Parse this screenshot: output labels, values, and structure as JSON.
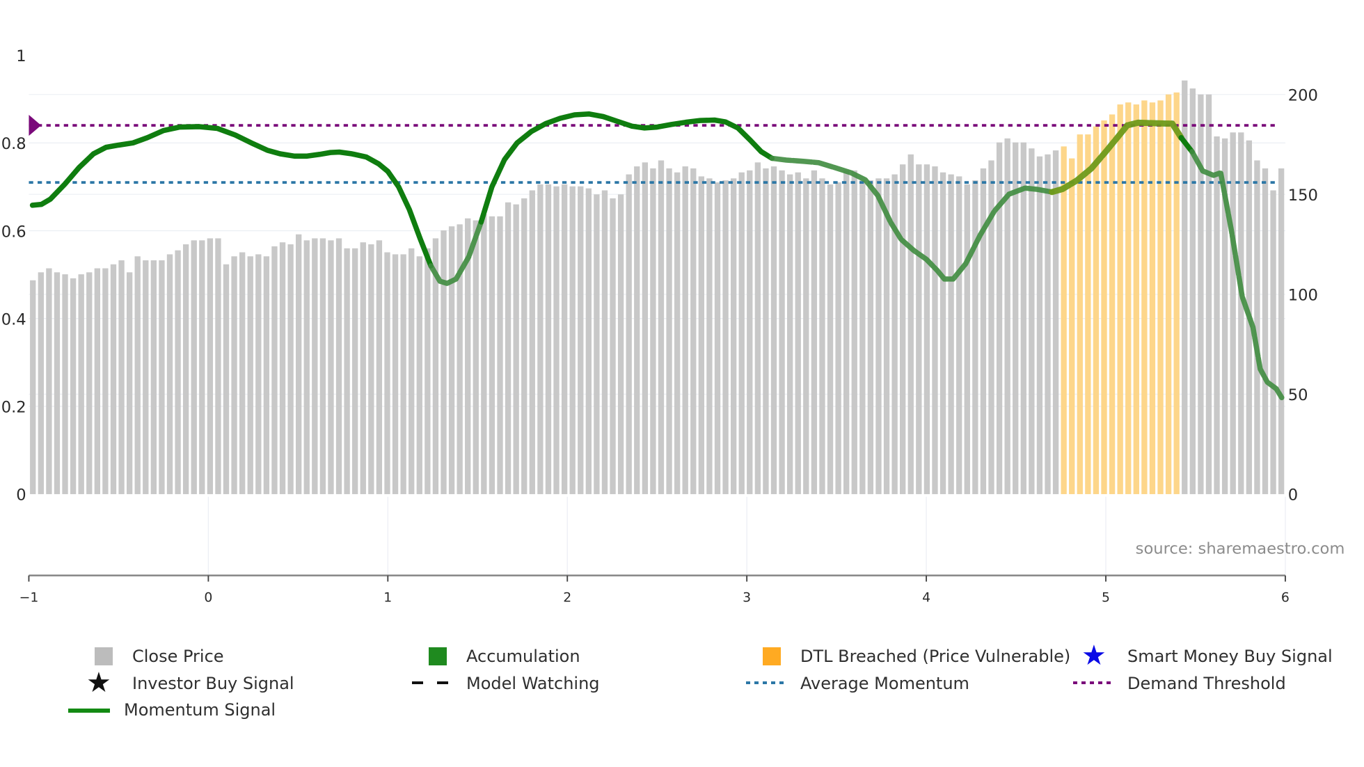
{
  "chart_data": {
    "type": "bar+line",
    "title": "",
    "source": "source: sharemaestro.com",
    "x_axis": {
      "ticks": [
        "−1",
        "0",
        "1",
        "2",
        "3",
        "4",
        "5",
        "6"
      ],
      "range": [
        -1,
        6
      ]
    },
    "y_left": {
      "ticks": [
        "0",
        "0.2",
        "0.4",
        "0.6",
        "0.8",
        "1"
      ],
      "range": [
        0,
        1
      ]
    },
    "y_right": {
      "ticks": [
        "0",
        "50",
        "100",
        "150",
        "200"
      ],
      "range": [
        0,
        220
      ]
    },
    "series": [
      {
        "name": "Close Price",
        "type": "bar",
        "axis": "right",
        "color": "#c8c8c8",
        "highlight_color": "#fdd68a",
        "highlight_range": [
          128,
          142
        ],
        "values": [
          107,
          111,
          113,
          111,
          110,
          108,
          110,
          111,
          113,
          113,
          115,
          117,
          111,
          119,
          117,
          117,
          117,
          120,
          122,
          125,
          127,
          127,
          128,
          128,
          115,
          119,
          121,
          119,
          120,
          119,
          124,
          126,
          125,
          130,
          127,
          128,
          128,
          127,
          128,
          123,
          123,
          126,
          125,
          127,
          121,
          120,
          120,
          123,
          119,
          123,
          128,
          132,
          134,
          135,
          138,
          137,
          140,
          139,
          139,
          146,
          145,
          148,
          152,
          155,
          155,
          154,
          155,
          154,
          154,
          153,
          150,
          152,
          148,
          150,
          160,
          164,
          166,
          163,
          167,
          163,
          161,
          164,
          163,
          159,
          158,
          156,
          157,
          158,
          161,
          162,
          166,
          163,
          164,
          162,
          160,
          161,
          158,
          162,
          158,
          155,
          156,
          162,
          162,
          157,
          157,
          158,
          158,
          160,
          165,
          170,
          165,
          165,
          164,
          161,
          160,
          159,
          155,
          157,
          163,
          167,
          176,
          178,
          176,
          176,
          173,
          169,
          170,
          172,
          174,
          168,
          180,
          180,
          184,
          187,
          190,
          195,
          196,
          195,
          197,
          196,
          197,
          200,
          201,
          207,
          203,
          200,
          200,
          179,
          178,
          181,
          181,
          177,
          167,
          163,
          152,
          163
        ]
      },
      {
        "name": "Momentum Signal",
        "type": "line",
        "axis": "left",
        "color": "#0f7d0f",
        "points": [
          [
            -0.98,
            0.658
          ],
          [
            -0.93,
            0.66
          ],
          [
            -0.88,
            0.672
          ],
          [
            -0.8,
            0.706
          ],
          [
            -0.72,
            0.744
          ],
          [
            -0.64,
            0.775
          ],
          [
            -0.57,
            0.79
          ],
          [
            -0.5,
            0.795
          ],
          [
            -0.42,
            0.8
          ],
          [
            -0.34,
            0.812
          ],
          [
            -0.25,
            0.828
          ],
          [
            -0.16,
            0.836
          ],
          [
            -0.05,
            0.837
          ],
          [
            0.05,
            0.833
          ],
          [
            0.15,
            0.818
          ],
          [
            0.25,
            0.798
          ],
          [
            0.33,
            0.783
          ],
          [
            0.4,
            0.775
          ],
          [
            0.48,
            0.77
          ],
          [
            0.55,
            0.77
          ],
          [
            0.62,
            0.774
          ],
          [
            0.68,
            0.778
          ],
          [
            0.73,
            0.779
          ],
          [
            0.8,
            0.775
          ],
          [
            0.88,
            0.768
          ],
          [
            0.95,
            0.752
          ],
          [
            1.0,
            0.735
          ],
          [
            1.06,
            0.7
          ],
          [
            1.12,
            0.648
          ],
          [
            1.18,
            0.582
          ],
          [
            1.24,
            0.52
          ],
          [
            1.29,
            0.485
          ],
          [
            1.33,
            0.48
          ],
          [
            1.38,
            0.49
          ],
          [
            1.45,
            0.54
          ],
          [
            1.52,
            0.62
          ],
          [
            1.58,
            0.7
          ],
          [
            1.65,
            0.762
          ],
          [
            1.72,
            0.8
          ],
          [
            1.8,
            0.826
          ],
          [
            1.88,
            0.844
          ],
          [
            1.96,
            0.856
          ],
          [
            2.04,
            0.864
          ],
          [
            2.12,
            0.866
          ],
          [
            2.2,
            0.86
          ],
          [
            2.28,
            0.849
          ],
          [
            2.36,
            0.838
          ],
          [
            2.43,
            0.834
          ],
          [
            2.5,
            0.836
          ],
          [
            2.58,
            0.842
          ],
          [
            2.66,
            0.847
          ],
          [
            2.74,
            0.851
          ],
          [
            2.82,
            0.852
          ],
          [
            2.88,
            0.848
          ],
          [
            2.95,
            0.834
          ],
          [
            3.02,
            0.806
          ],
          [
            3.08,
            0.78
          ],
          [
            3.14,
            0.765
          ],
          [
            3.22,
            0.761
          ],
          [
            3.32,
            0.758
          ],
          [
            3.4,
            0.755
          ],
          [
            3.48,
            0.745
          ],
          [
            3.58,
            0.732
          ],
          [
            3.66,
            0.716
          ],
          [
            3.73,
            0.68
          ],
          [
            3.8,
            0.62
          ],
          [
            3.86,
            0.58
          ],
          [
            3.93,
            0.555
          ],
          [
            4.0,
            0.535
          ],
          [
            4.06,
            0.51
          ],
          [
            4.1,
            0.49
          ],
          [
            4.15,
            0.49
          ],
          [
            4.22,
            0.525
          ],
          [
            4.3,
            0.59
          ],
          [
            4.38,
            0.645
          ],
          [
            4.46,
            0.683
          ],
          [
            4.55,
            0.697
          ],
          [
            4.62,
            0.694
          ],
          [
            4.7,
            0.688
          ],
          [
            4.76,
            0.695
          ],
          [
            4.84,
            0.715
          ],
          [
            4.92,
            0.742
          ],
          [
            5.0,
            0.78
          ],
          [
            5.06,
            0.81
          ],
          [
            5.12,
            0.84
          ],
          [
            5.18,
            0.846
          ],
          [
            5.26,
            0.845
          ],
          [
            5.34,
            0.844
          ],
          [
            5.37,
            0.844
          ],
          [
            5.42,
            0.812
          ],
          [
            5.48,
            0.78
          ],
          [
            5.54,
            0.736
          ],
          [
            5.6,
            0.726
          ],
          [
            5.64,
            0.732
          ],
          [
            5.7,
            0.6
          ],
          [
            5.76,
            0.45
          ],
          [
            5.82,
            0.38
          ],
          [
            5.86,
            0.285
          ],
          [
            5.9,
            0.255
          ],
          [
            5.95,
            0.24
          ],
          [
            5.98,
            0.22
          ]
        ],
        "faded_ranges": [
          [
            1.2,
            1.45
          ],
          [
            3.14,
            4.7
          ],
          [
            5.45,
            5.98
          ]
        ],
        "olive_range": [
          4.7,
          5.37
        ]
      },
      {
        "name": "Demand Threshold",
        "type": "hline",
        "axis": "left",
        "value": 0.84,
        "color": "#7a0a7a",
        "style": "dotted"
      },
      {
        "name": "Average Momentum",
        "type": "hline",
        "axis": "left",
        "value": 0.71,
        "color": "#2c77a6",
        "style": "dotted"
      }
    ],
    "markers": [
      {
        "type": "diamond",
        "x": -1,
        "y": 0.84,
        "color": "#7a0a7a"
      }
    ]
  },
  "legend": {
    "items": [
      {
        "label": "Close Price",
        "symbol": "box",
        "color": "#bcbcbc"
      },
      {
        "label": "Accumulation",
        "symbol": "box",
        "color": "#1f8a1f"
      },
      {
        "label": "DTL Breached (Price Vulnerable)",
        "symbol": "box",
        "color": "#ffaa22"
      },
      {
        "label": "Smart Money Buy Signal",
        "symbol": "star",
        "color": "#0a0ae6"
      },
      {
        "label": "Investor Buy Signal",
        "symbol": "star",
        "color": "#111111"
      },
      {
        "label": "Model Watching",
        "symbol": "dash",
        "color": "#111111"
      },
      {
        "label": "Average Momentum",
        "symbol": "dotted",
        "color": "#2c77a6"
      },
      {
        "label": "Demand Threshold",
        "symbol": "dotted",
        "color": "#7a0a7a"
      },
      {
        "label": "Momentum Signal",
        "symbol": "line",
        "color": "#138a13"
      }
    ]
  }
}
